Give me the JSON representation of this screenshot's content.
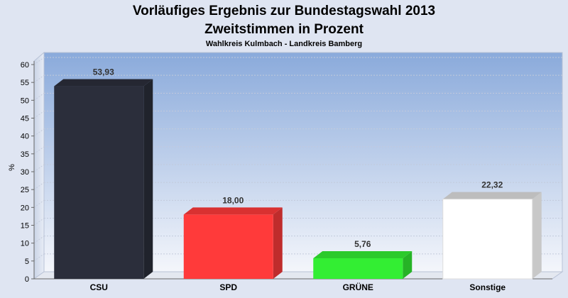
{
  "chart_data": {
    "type": "bar",
    "title": "Vorläufiges Ergebnis zur Bundestagswahl 2013",
    "subtitle": "Zweitstimmen in Prozent",
    "caption": "Wahlkreis Kulmbach - Landkreis Bamberg",
    "ylabel": "%",
    "xlabel": "",
    "categories": [
      "CSU",
      "SPD",
      "GRÜNE",
      "Sonstige"
    ],
    "values": [
      53.93,
      18.0,
      5.76,
      22.32
    ],
    "value_labels": [
      "53,93",
      "18,00",
      "5,76",
      "22,32"
    ],
    "colors": [
      "#2b2e3b",
      "#ff3a3a",
      "#33ee33",
      "#ffffff"
    ],
    "ylim": [
      0,
      60
    ],
    "yticks": [
      0,
      5,
      10,
      15,
      20,
      25,
      30,
      35,
      40,
      45,
      50,
      55,
      60
    ],
    "grid": true,
    "style": "3d"
  }
}
